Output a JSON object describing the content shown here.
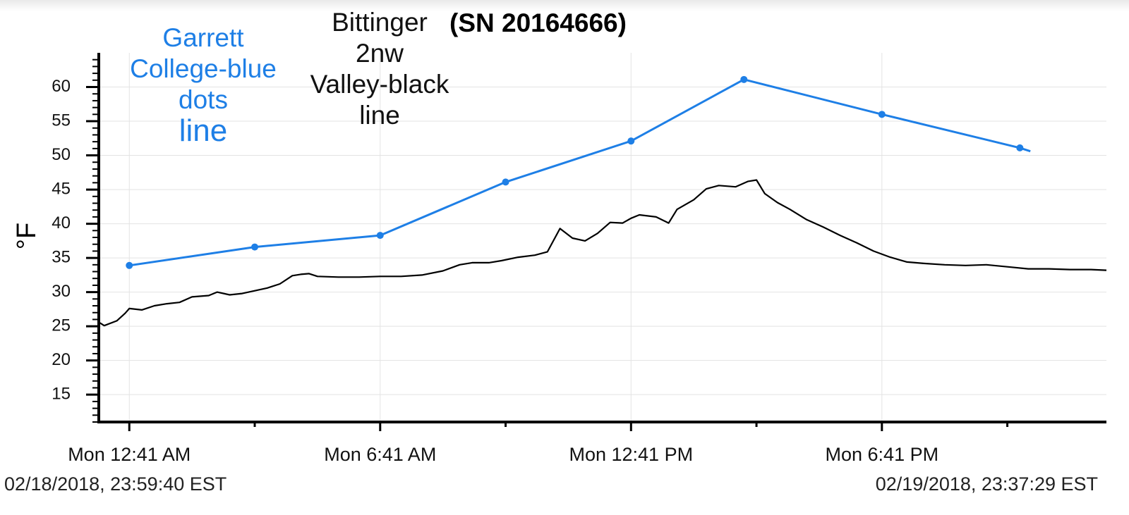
{
  "title": "(SN 20164666)",
  "annotations": {
    "blue": [
      "Garrett",
      "College-blue",
      "dots",
      "line"
    ],
    "black": [
      "Bittinger",
      "2nw",
      "Valley-black",
      "line"
    ]
  },
  "timestamps": {
    "start": "02/18/2018, 23:59:40 EST",
    "end": "02/19/2018, 23:37:29 EST"
  },
  "colors": {
    "blue_series": "#1e7fe6",
    "black_series": "#000000"
  },
  "chart_data": {
    "type": "line",
    "ylabel": "°F",
    "xlabel": "",
    "ylim": [
      11,
      65
    ],
    "y_ticks": [
      15,
      20,
      25,
      30,
      35,
      40,
      45,
      50,
      55,
      60
    ],
    "x_unit": "hours since Mon 12:41 AM",
    "xlim": [
      -0.73,
      23.37
    ],
    "x_ticks": [
      {
        "x": 0,
        "label": "Mon 12:41 AM"
      },
      {
        "x": 6,
        "label": "Mon 6:41 AM"
      },
      {
        "x": 12,
        "label": "Mon 12:41 PM"
      },
      {
        "x": 18,
        "label": "Mon 6:41 PM"
      }
    ],
    "x_minor_ticks": [
      3,
      9,
      15,
      21
    ],
    "grid": true,
    "series": [
      {
        "name": "Garrett College-blue dots line",
        "color": "#1e7fe6",
        "markers": true,
        "points": [
          [
            0.0,
            33.9
          ],
          [
            3.0,
            36.6
          ],
          [
            6.0,
            38.3
          ],
          [
            9.0,
            46.1
          ],
          [
            12.0,
            52.1
          ],
          [
            14.7,
            61.1
          ],
          [
            18.0,
            56.0
          ],
          [
            21.3,
            51.1
          ]
        ],
        "line_end": [
          21.55,
          50.6
        ]
      },
      {
        "name": "Bittinger 2nw Valley-black line",
        "color": "#000000",
        "markers": false,
        "points": [
          [
            -0.73,
            25.6
          ],
          [
            -0.6,
            25.1
          ],
          [
            -0.3,
            25.8
          ],
          [
            -0.1,
            26.9
          ],
          [
            0.0,
            27.6
          ],
          [
            0.3,
            27.4
          ],
          [
            0.6,
            28.0
          ],
          [
            0.9,
            28.3
          ],
          [
            1.2,
            28.5
          ],
          [
            1.5,
            29.3
          ],
          [
            1.9,
            29.5
          ],
          [
            2.1,
            30.0
          ],
          [
            2.4,
            29.6
          ],
          [
            2.7,
            29.8
          ],
          [
            3.0,
            30.2
          ],
          [
            3.3,
            30.6
          ],
          [
            3.6,
            31.2
          ],
          [
            3.9,
            32.4
          ],
          [
            4.1,
            32.6
          ],
          [
            4.3,
            32.7
          ],
          [
            4.5,
            32.3
          ],
          [
            5.0,
            32.2
          ],
          [
            5.5,
            32.2
          ],
          [
            6.0,
            32.3
          ],
          [
            6.5,
            32.3
          ],
          [
            7.0,
            32.5
          ],
          [
            7.5,
            33.1
          ],
          [
            7.9,
            34.0
          ],
          [
            8.2,
            34.3
          ],
          [
            8.6,
            34.3
          ],
          [
            8.9,
            34.6
          ],
          [
            9.3,
            35.1
          ],
          [
            9.7,
            35.4
          ],
          [
            10.0,
            35.9
          ],
          [
            10.3,
            39.3
          ],
          [
            10.6,
            37.9
          ],
          [
            10.9,
            37.5
          ],
          [
            11.2,
            38.6
          ],
          [
            11.5,
            40.2
          ],
          [
            11.8,
            40.1
          ],
          [
            12.0,
            40.8
          ],
          [
            12.2,
            41.3
          ],
          [
            12.6,
            41.0
          ],
          [
            12.9,
            40.1
          ],
          [
            13.1,
            42.1
          ],
          [
            13.5,
            43.5
          ],
          [
            13.8,
            45.1
          ],
          [
            14.1,
            45.6
          ],
          [
            14.5,
            45.4
          ],
          [
            14.8,
            46.2
          ],
          [
            15.0,
            46.4
          ],
          [
            15.2,
            44.4
          ],
          [
            15.5,
            43.1
          ],
          [
            15.8,
            42.1
          ],
          [
            16.2,
            40.6
          ],
          [
            16.6,
            39.5
          ],
          [
            17.0,
            38.3
          ],
          [
            17.4,
            37.2
          ],
          [
            17.8,
            36.0
          ],
          [
            18.2,
            35.1
          ],
          [
            18.6,
            34.4
          ],
          [
            19.0,
            34.2
          ],
          [
            19.5,
            34.0
          ],
          [
            20.0,
            33.9
          ],
          [
            20.5,
            34.0
          ],
          [
            21.0,
            33.7
          ],
          [
            21.5,
            33.4
          ],
          [
            22.0,
            33.4
          ],
          [
            22.5,
            33.3
          ],
          [
            23.0,
            33.3
          ],
          [
            23.37,
            33.2
          ]
        ]
      }
    ]
  }
}
